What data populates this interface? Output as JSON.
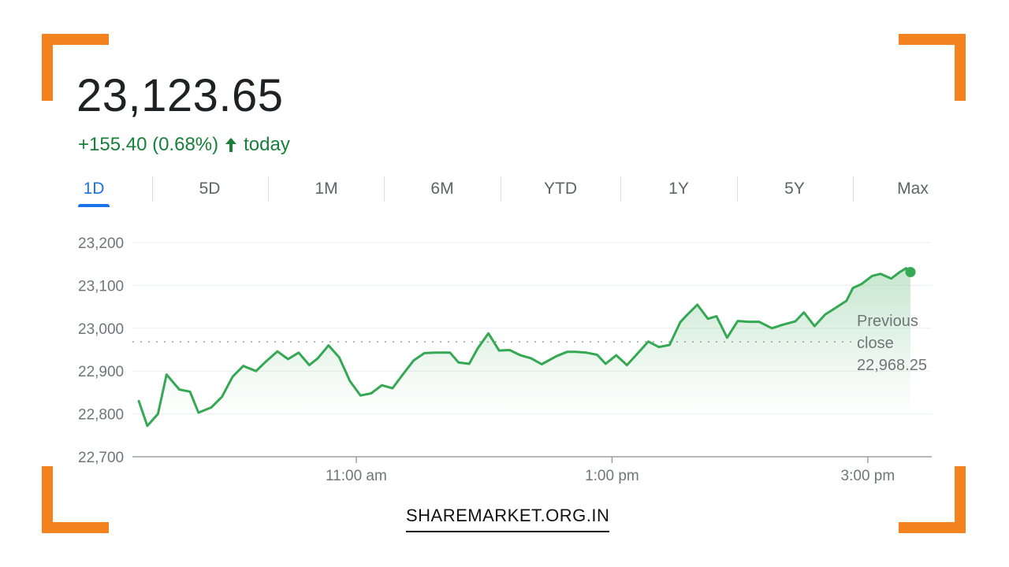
{
  "header": {
    "price": "23,123.65",
    "change_text": "+155.40 (0.68%)",
    "change_suffix": "today",
    "change_color": "#188038"
  },
  "tabs": [
    {
      "label": "1D",
      "active": true
    },
    {
      "label": "5D",
      "active": false
    },
    {
      "label": "1M",
      "active": false
    },
    {
      "label": "6M",
      "active": false
    },
    {
      "label": "YTD",
      "active": false
    },
    {
      "label": "1Y",
      "active": false
    },
    {
      "label": "5Y",
      "active": false
    },
    {
      "label": "Max",
      "active": false
    }
  ],
  "chart_data": {
    "type": "area",
    "title": "",
    "xlabel": "",
    "ylabel": "",
    "ylim": [
      22700,
      23200
    ],
    "y_ticks": [
      22700,
      22800,
      22900,
      23000,
      23100,
      23200
    ],
    "y_tick_labels": [
      "22,700",
      "22,800",
      "22,900",
      "23,000",
      "23,100",
      "23,200"
    ],
    "x_range_minutes": [
      555,
      930
    ],
    "x_ticks": [
      {
        "label": "11:00 am",
        "minutes": 660
      },
      {
        "label": "1:00 pm",
        "minutes": 780
      },
      {
        "label": "3:00 pm",
        "minutes": 900
      }
    ],
    "grid": true,
    "line_color": "#34a853",
    "previous_close": {
      "label_line1": "Previous",
      "label_line2": "close",
      "value_text": "22,968.25",
      "value": 22968.25
    },
    "series": [
      {
        "x": [
          558,
          562,
          567,
          571,
          577,
          582,
          586,
          592,
          597,
          602,
          607,
          613,
          618,
          623,
          628,
          633,
          638,
          642,
          647,
          652,
          657,
          662,
          667,
          672,
          677,
          682,
          687,
          692,
          697,
          704,
          708,
          713,
          717,
          722,
          727,
          732,
          737,
          742,
          747,
          754,
          759,
          763,
          768,
          773,
          777,
          782,
          787,
          792,
          797,
          802,
          807,
          812,
          815,
          820,
          825,
          829,
          834,
          839,
          844,
          849,
          855,
          860,
          866,
          870,
          875,
          880,
          885,
          890,
          893,
          897,
          902,
          906,
          911,
          915,
          918,
          920
        ],
        "y": [
          22830,
          22772,
          22800,
          22892,
          22857,
          22852,
          22803,
          22815,
          22840,
          22887,
          22912,
          22900,
          22924,
          22946,
          22928,
          22943,
          22914,
          22930,
          22960,
          22932,
          22877,
          22843,
          22848,
          22867,
          22860,
          22893,
          22925,
          22942,
          22943,
          22943,
          22920,
          22917,
          22953,
          22988,
          22948,
          22949,
          22937,
          22930,
          22916,
          22935,
          22945,
          22945,
          22943,
          22938,
          22917,
          22937,
          22914,
          22941,
          22969,
          22956,
          22961,
          23014,
          23030,
          23055,
          23022,
          23028,
          22978,
          23017,
          23015,
          23015,
          23000,
          23008,
          23016,
          23037,
          23005,
          23032,
          23048,
          23064,
          23094,
          23103,
          23122,
          23127,
          23116,
          23131,
          23140,
          23131
        ]
      }
    ],
    "last_point_marker": true
  },
  "footer": {
    "site": "SHAREMARKET.ORG.IN"
  }
}
